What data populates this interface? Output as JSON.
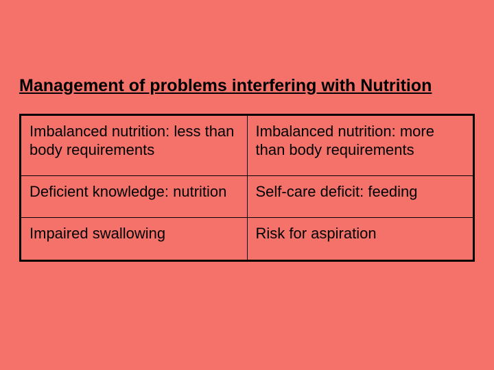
{
  "slide": {
    "background_color": "#f4726a",
    "title": "Management of problems interfering with Nutrition",
    "title_fontsize": 25,
    "title_color": "#000000",
    "title_fontweight": "bold",
    "title_underline": true,
    "table": {
      "type": "table",
      "columns": 2,
      "column_widths": [
        "50%",
        "50%"
      ],
      "border_color": "#000000",
      "border_width": 1,
      "outer_border_width": 2,
      "cell_fontsize": 22,
      "cell_color": "#000000",
      "cell_background": "transparent",
      "cell_padding": "10px 12px 24px 12px",
      "rows": [
        [
          "Imbalanced nutrition: less than body requirements",
          "Imbalanced nutrition: more than body requirements"
        ],
        [
          "Deficient knowledge: nutrition",
          "Self-care deficit: feeding"
        ],
        [
          "Impaired swallowing",
          "Risk for aspiration"
        ]
      ]
    }
  }
}
